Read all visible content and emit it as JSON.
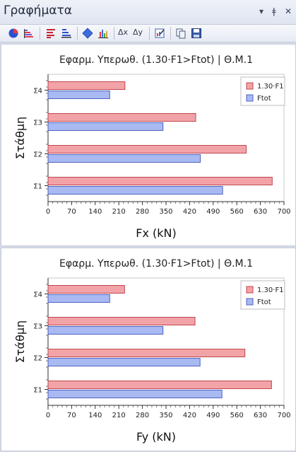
{
  "window": {
    "title": "Γραφήματα",
    "controls": [
      "▾",
      "ǂ",
      "✕"
    ]
  },
  "toolbar": {
    "delta_x_label": "Δx",
    "delta_y_label": "Δy",
    "icons": [
      "pie-chart-icon",
      "stacked-bars-icon",
      "horizontal-bars-red-icon",
      "horizontal-bars-blue-icon",
      "diamond-icon",
      "column-chart-icon",
      "delta-x-icon",
      "delta-y-icon",
      "edit-chart-icon",
      "copy-icon",
      "save-icon"
    ]
  },
  "colors": {
    "series_red": "#f2a3a8",
    "series_red_border": "#c0474f",
    "series_blue": "#a9b9f2",
    "series_blue_border": "#4f63c0"
  },
  "chart_data": [
    {
      "type": "bar",
      "orientation": "horizontal",
      "title": "Εφαρμ. Υπερωθ. (1.30·F1>Ftot) | Θ.Μ.1",
      "xlabel": "Fx (kN)",
      "ylabel": "Στάθμη",
      "categories": [
        "Σ1",
        "Σ2",
        "Σ3",
        "Σ4"
      ],
      "xlim": [
        0,
        700
      ],
      "xticks": [
        0,
        70,
        140,
        210,
        280,
        350,
        420,
        490,
        560,
        630,
        700
      ],
      "legend": "top-right",
      "grid": false,
      "series": [
        {
          "name": "1.30·F1",
          "values": [
            665,
            588,
            438,
            228
          ]
        },
        {
          "name": "Ftot",
          "values": [
            518,
            452,
            341,
            183
          ]
        }
      ]
    },
    {
      "type": "bar",
      "orientation": "horizontal",
      "title": "Εφαρμ. Υπερωθ. (1.30·F1>Ftot) | Θ.Μ.1",
      "xlabel": "Fy (kN)",
      "ylabel": "Στάθμη",
      "categories": [
        "Σ1",
        "Σ2",
        "Σ3",
        "Σ4"
      ],
      "xlim": [
        0,
        700
      ],
      "xticks": [
        0,
        70,
        140,
        210,
        280,
        350,
        420,
        490,
        560,
        630,
        700
      ],
      "legend": "top-right",
      "grid": false,
      "series": [
        {
          "name": "1.30·F1",
          "values": [
            663,
            584,
            436,
            227
          ]
        },
        {
          "name": "Ftot",
          "values": [
            516,
            451,
            341,
            183
          ]
        }
      ]
    }
  ]
}
